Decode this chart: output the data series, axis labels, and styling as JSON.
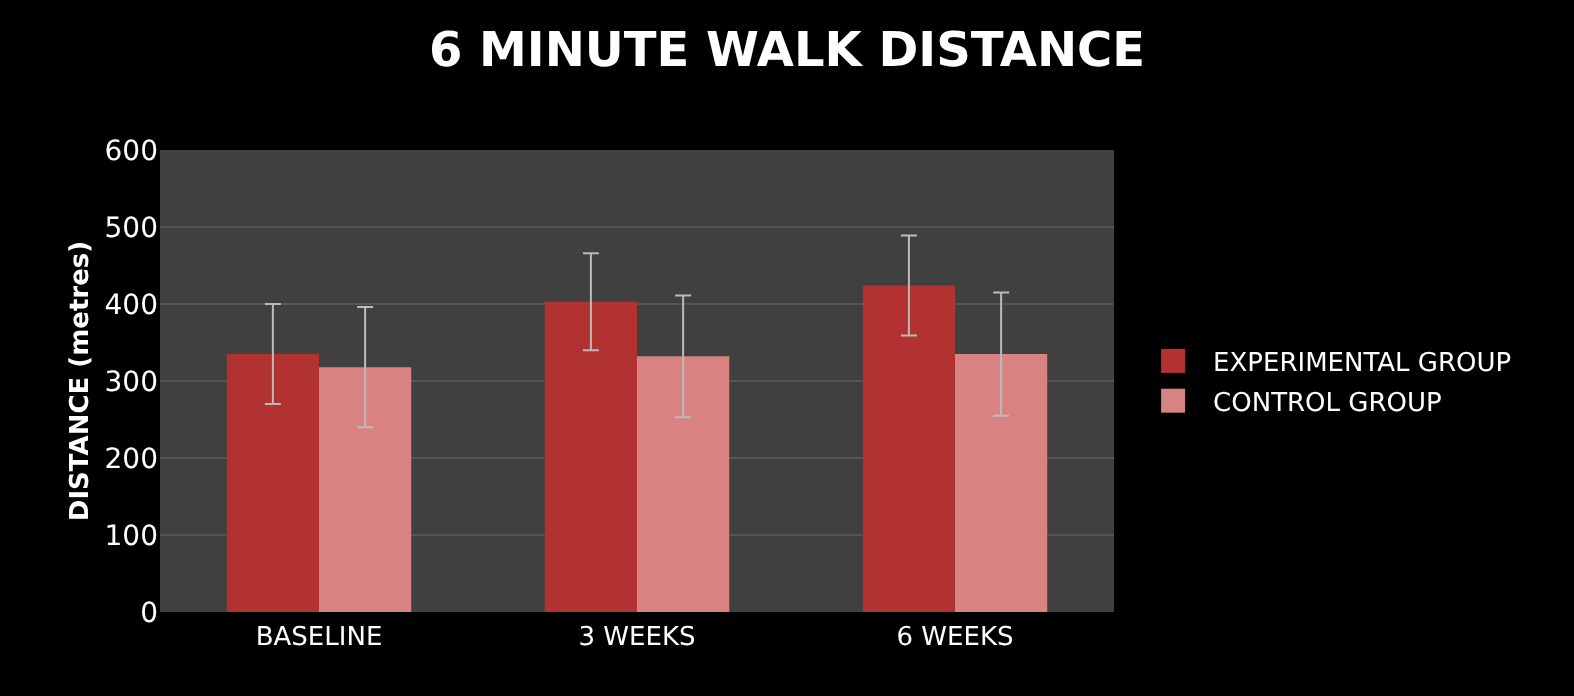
{
  "chart_data": {
    "type": "bar",
    "title": "6 MINUTE WALK DISTANCE",
    "ylabel": "DISTANCE (metres)",
    "categories": [
      "BASELINE",
      "3 WEEKS",
      "6 WEEKS"
    ],
    "series": [
      {
        "name": "EXPERIMENTAL GROUP",
        "color": "#b23232",
        "values": [
          335,
          403,
          424
        ],
        "errors": [
          65,
          63,
          65
        ]
      },
      {
        "name": "CONTROL GROUP",
        "color": "#d88282",
        "values": [
          318,
          332,
          335
        ],
        "errors": [
          78,
          79,
          80
        ]
      }
    ],
    "ylim": [
      0,
      600
    ],
    "yticks": [
      0,
      100,
      200,
      300,
      400,
      500,
      600
    ],
    "grid": "y",
    "legend": "right"
  }
}
